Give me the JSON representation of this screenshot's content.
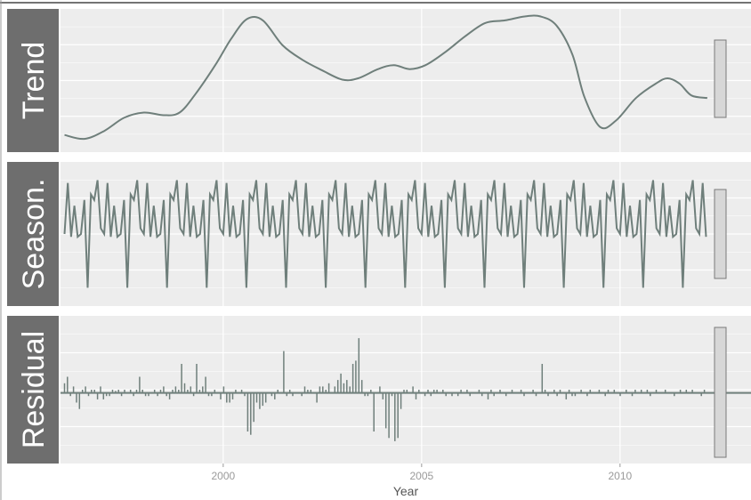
{
  "chart_data": {
    "type": "line",
    "xlabel": "Year",
    "x_ticks": [
      2000,
      2005,
      2010
    ],
    "xlim": [
      1995.9,
      2013.3
    ],
    "grid": true,
    "line_color": "#6f7f7b",
    "strip_color": "#6e6e6e",
    "panel_bg": "#ededed",
    "scale_bar_fill": "#d7d7d7",
    "panels": [
      {
        "name": "Trend",
        "type": "line",
        "ylim": [
          0,
          100
        ],
        "points": [
          [
            1996.0,
            9
          ],
          [
            1996.5,
            6
          ],
          [
            1997.0,
            12
          ],
          [
            1997.5,
            22
          ],
          [
            1998.0,
            26
          ],
          [
            1998.5,
            24
          ],
          [
            1998.9,
            26
          ],
          [
            1999.3,
            40
          ],
          [
            1999.8,
            62
          ],
          [
            2000.2,
            82
          ],
          [
            2000.6,
            97
          ],
          [
            2001.0,
            96
          ],
          [
            2001.5,
            77
          ],
          [
            2002.0,
            66
          ],
          [
            2002.5,
            58
          ],
          [
            2003.0,
            51
          ],
          [
            2003.4,
            52
          ],
          [
            2003.9,
            59
          ],
          [
            2004.3,
            62
          ],
          [
            2004.7,
            59
          ],
          [
            2005.1,
            62
          ],
          [
            2005.6,
            72
          ],
          [
            2006.1,
            84
          ],
          [
            2006.6,
            94
          ],
          [
            2007.1,
            96
          ],
          [
            2007.6,
            99
          ],
          [
            2008.0,
            99
          ],
          [
            2008.4,
            92
          ],
          [
            2008.8,
            70
          ],
          [
            2009.1,
            38
          ],
          [
            2009.5,
            15
          ],
          [
            2009.9,
            20
          ],
          [
            2010.4,
            37
          ],
          [
            2010.9,
            48
          ],
          [
            2011.2,
            52
          ],
          [
            2011.5,
            48
          ],
          [
            2011.8,
            39
          ],
          [
            2012.2,
            37
          ]
        ]
      },
      {
        "name": "Season.",
        "type": "line",
        "ylim": [
          -1.1,
          1.1
        ],
        "start_year": 1996.0,
        "end_year": 2012.2,
        "pattern": [
          0.0,
          0.9,
          -0.05,
          0.5,
          -0.05,
          0.0,
          0.6,
          -0.95,
          0.7,
          0.6,
          0.95,
          0.1
        ]
      },
      {
        "name": "Residual",
        "type": "bar",
        "ylim": [
          -1.0,
          1.1
        ],
        "start_year": 1996.0,
        "end_year": 2012.2,
        "values": [
          0.15,
          0.25,
          -0.05,
          0.1,
          -0.15,
          -0.25,
          0.05,
          0.1,
          -0.05,
          0.05,
          0.05,
          -0.1,
          0.1,
          -0.1,
          -0.05,
          -0.05,
          0.05,
          0.03,
          0.05,
          -0.05,
          0.05,
          0.0,
          0.05,
          -0.05,
          0.05,
          0.25,
          0.05,
          -0.05,
          -0.05,
          0.0,
          0.05,
          -0.05,
          0.05,
          0.1,
          -0.05,
          -0.1,
          0.05,
          0.1,
          0.05,
          0.45,
          0.15,
          0.05,
          0.1,
          -0.05,
          0.45,
          0.05,
          0.1,
          0.25,
          -0.05,
          -0.05,
          0.05,
          0.0,
          -0.1,
          0.1,
          -0.15,
          -0.15,
          -0.1,
          0.05,
          0.0,
          0.05,
          -0.05,
          -0.6,
          -0.65,
          -0.45,
          -0.15,
          -0.25,
          -0.2,
          -0.15,
          0.0,
          -0.05,
          -0.1,
          0.05,
          0.0,
          0.65,
          -0.05,
          0.05,
          -0.05,
          0.0,
          0.0,
          -0.05,
          0.1,
          0.05,
          0.05,
          0.0,
          -0.15,
          0.1,
          0.1,
          0.05,
          0.15,
          0.0,
          0.1,
          0.2,
          0.3,
          0.15,
          0.2,
          0.1,
          0.45,
          0.5,
          0.85,
          0.2,
          -0.05,
          -0.05,
          0.05,
          -0.6,
          0.0,
          0.1,
          -0.1,
          -0.55,
          -0.7,
          -0.05,
          -0.75,
          -0.7,
          -0.25,
          0.05,
          0.05,
          0.0,
          0.1,
          -0.1,
          0.05,
          0.0,
          -0.05,
          0.05,
          -0.05,
          0.05,
          0.05,
          0.0,
          0.05,
          -0.05,
          0.0,
          -0.05,
          0.0,
          -0.05,
          0.05,
          0.0,
          0.05,
          -0.05,
          0.0,
          0.0,
          0.05,
          -0.05,
          0.0,
          -0.1,
          0.05,
          -0.05,
          0.0,
          0.05,
          0.0,
          -0.05,
          0.0,
          0.05,
          0.0,
          0.0,
          0.05,
          -0.05,
          0.0,
          0.0,
          0.05,
          -0.05,
          0.0,
          0.45,
          0.05,
          -0.05,
          0.0,
          0.05,
          -0.05,
          0.05,
          0.0,
          -0.1,
          0.05,
          -0.05,
          -0.05,
          0.0,
          0.05,
          0.0,
          -0.05,
          0.05,
          0.0,
          0.0,
          0.05,
          0.0,
          -0.05,
          0.05,
          0.0,
          0.05,
          0.0,
          -0.05,
          0.0,
          0.05,
          0.0,
          -0.05,
          0.05,
          0.0,
          0.05,
          0.0,
          0.05,
          -0.05,
          0.0,
          0.05,
          0.0,
          0.0,
          0.05,
          0.0,
          0.0,
          -0.05,
          0.0,
          0.05,
          0.0,
          0.05,
          0.0,
          0.05,
          0.0,
          0.0,
          -0.05,
          0.05,
          0.0
        ]
      }
    ]
  }
}
